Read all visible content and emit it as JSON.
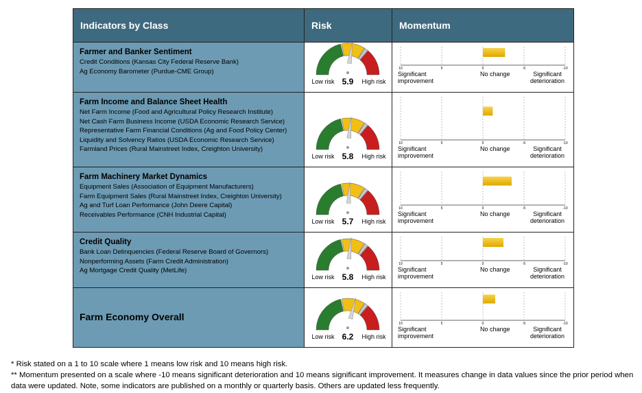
{
  "header": {
    "indicators": "Indicators by Class",
    "risk": "Risk",
    "momentum": "Momentum"
  },
  "gauge": {
    "range": [
      1,
      10
    ],
    "low_label": "Low risk",
    "high_label": "High risk"
  },
  "momentum_axis": {
    "xlim": [
      10,
      -10
    ],
    "xticks": [
      10,
      5,
      0,
      -5,
      -10
    ],
    "left_label": "Significant improvement",
    "center_label": "No change",
    "right_label": "Significant deterioration"
  },
  "rows": [
    {
      "title": "Farmer and Banker Sentiment",
      "items": [
        "Credit Conditions (Kansas City Federal Reserve Bank)",
        "Ag Economy Barometer (Purdue-CME Group)"
      ],
      "risk": 5.9,
      "momentum": -2.7
    },
    {
      "title": "Farm Income and Balance Sheet Health",
      "items": [
        "Net Farm Income (Food and Agricultural Policy Research Institute)",
        "Net Cash Farm Business Income (USDA Economic Research Service)",
        "Representative Farm Financial Conditions (Ag and Food Policy Center)",
        "Liquidity and Solvency Ratios (USDA Economic Research Service)",
        "Farmland Prices (Rural Mainstreet Index, Creighton University)"
      ],
      "risk": 5.8,
      "momentum": -1.2
    },
    {
      "title": "Farm Machinery Market Dynamics",
      "items": [
        "Equipment Sales (Association of Equipment Manufacturers)",
        "Farm Equipment Sales (Rural Mainstreet Index, Creighton University)",
        "Ag and Turf Loan Performance (John Deere Capital)",
        "Receivables Performance (CNH Industrial Capital)"
      ],
      "risk": 5.7,
      "momentum": -3.5
    },
    {
      "title": "Credit Quality",
      "items": [
        "Bank Loan Delinquencies (Federal Reserve Board of Governors)",
        "Nonperforming Assets (Farm Credit Administration)",
        "Ag Mortgage Credit Quality (MetLife)"
      ],
      "risk": 5.8,
      "momentum": -2.5
    },
    {
      "title": "Farm Economy Overall",
      "items": [],
      "risk": 6.2,
      "momentum": -1.5
    }
  ],
  "footnotes": [
    "* Risk stated on a 1 to 10 scale where 1 means low risk and 10 means high risk.",
    "** Momentum presented on a scale where -10 means significant deterioration and 10 means significant improvement. It measures change in data values since the prior period when data were updated. Note, some indicators are published on a monthly or quarterly basis. Others are updated less frequently."
  ]
}
